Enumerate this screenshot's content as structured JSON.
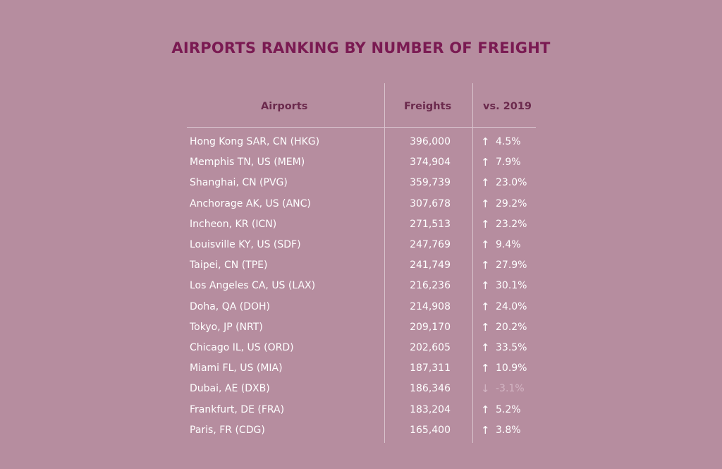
{
  "title": "AIRPORTS RANKING BY NUMBER OF FREIGHT",
  "colors": {
    "background": "#b68d9f",
    "title": "#7a1a52",
    "header": "#6b2a4d",
    "text": "#ffffff",
    "negative": "#d3b5c3"
  },
  "chart_data": {
    "type": "table",
    "title": "AIRPORTS RANKING BY NUMBER OF FREIGHT",
    "columns": [
      "Airports",
      "Freights",
      "vs. 2019"
    ],
    "rows": [
      {
        "airport": "Hong Kong SAR, CN (HKG)",
        "freights": "396,000",
        "direction": "up",
        "change": "4.5%"
      },
      {
        "airport": "Memphis TN, US (MEM)",
        "freights": "374,904",
        "direction": "up",
        "change": "7.9%"
      },
      {
        "airport": "Shanghai, CN (PVG)",
        "freights": "359,739",
        "direction": "up",
        "change": "23.0%"
      },
      {
        "airport": "Anchorage AK, US (ANC)",
        "freights": "307,678",
        "direction": "up",
        "change": "29.2%"
      },
      {
        "airport": "Incheon, KR (ICN)",
        "freights": "271,513",
        "direction": "up",
        "change": "23.2%"
      },
      {
        "airport": "Louisville KY, US (SDF)",
        "freights": "247,769",
        "direction": "up",
        "change": "9.4%"
      },
      {
        "airport": "Taipei, CN (TPE)",
        "freights": "241,749",
        "direction": "up",
        "change": "27.9%"
      },
      {
        "airport": "Los Angeles CA, US (LAX)",
        "freights": "216,236",
        "direction": "up",
        "change": "30.1%"
      },
      {
        "airport": "Doha, QA (DOH)",
        "freights": "214,908",
        "direction": "up",
        "change": "24.0%"
      },
      {
        "airport": "Tokyo, JP (NRT)",
        "freights": "209,170",
        "direction": "up",
        "change": "20.2%"
      },
      {
        "airport": "Chicago IL, US (ORD)",
        "freights": "202,605",
        "direction": "up",
        "change": "33.5%"
      },
      {
        "airport": "Miami FL, US (MIA)",
        "freights": "187,311",
        "direction": "up",
        "change": "10.9%"
      },
      {
        "airport": "Dubai, AE (DXB)",
        "freights": "186,346",
        "direction": "down",
        "change": "-3.1%"
      },
      {
        "airport": "Frankfurt, DE (FRA)",
        "freights": "183,204",
        "direction": "up",
        "change": "5.2%"
      },
      {
        "airport": "Paris, FR (CDG)",
        "freights": "165,400",
        "direction": "up",
        "change": "3.8%"
      }
    ]
  }
}
